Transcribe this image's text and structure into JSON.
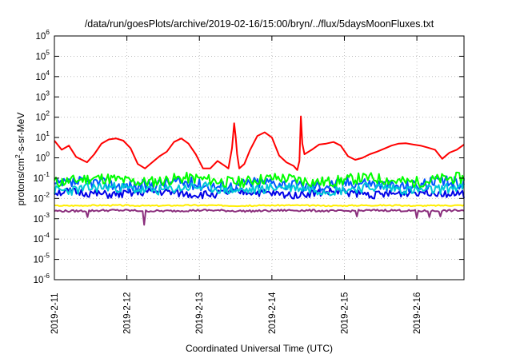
{
  "chart_data": {
    "type": "line",
    "title": "/data/run/goesPlots/archive/2019-02-16/15:00/bryn/../flux/5daysMoonFluxes.txt",
    "xlabel": "Coordinated Universal Time (UTC)",
    "ylabel": "protons/cm²-s-sr-MeV",
    "ylabel_parts": {
      "pre": "protons/cm",
      "sup": "2",
      "post": "-s-sr-MeV"
    },
    "yscale": "log",
    "ylim": [
      1e-06,
      1000000.0
    ],
    "xlim": [
      0,
      5.65
    ],
    "grid": true,
    "x_ticks": [
      {
        "label": "2019-2-11",
        "x": 0
      },
      {
        "label": "2019-2-12",
        "x": 1
      },
      {
        "label": "2019-2-13",
        "x": 2
      },
      {
        "label": "2019-2-14",
        "x": 3
      },
      {
        "label": "2019-2-15",
        "x": 4
      },
      {
        "label": "2019-2-16",
        "x": 5
      }
    ],
    "y_ticks": [
      {
        "base": "10",
        "exp": "6"
      },
      {
        "base": "10",
        "exp": "5"
      },
      {
        "base": "10",
        "exp": "4"
      },
      {
        "base": "10",
        "exp": "3"
      },
      {
        "base": "10",
        "exp": "2"
      },
      {
        "base": "10",
        "exp": "1"
      },
      {
        "base": "10",
        "exp": "0"
      },
      {
        "base": "10",
        "exp": "-1"
      },
      {
        "base": "10",
        "exp": "-2"
      },
      {
        "base": "10",
        "exp": "-3"
      },
      {
        "base": "10",
        "exp": "-4"
      },
      {
        "base": "10",
        "exp": "-5"
      },
      {
        "base": "10",
        "exp": "-6"
      }
    ],
    "series": [
      {
        "color": "#ff0000",
        "x": [
          0,
          0.1,
          0.2,
          0.3,
          0.45,
          0.55,
          0.65,
          0.75,
          0.85,
          0.95,
          1.05,
          1.15,
          1.25,
          1.35,
          1.45,
          1.55,
          1.65,
          1.75,
          1.85,
          1.95,
          2.05,
          2.15,
          2.25,
          2.35,
          2.4,
          2.45,
          2.48,
          2.5,
          2.52,
          2.55,
          2.62,
          2.7,
          2.8,
          2.9,
          3.0,
          3.1,
          3.2,
          3.3,
          3.35,
          3.38,
          3.4,
          3.42,
          3.45,
          3.55,
          3.65,
          3.75,
          3.85,
          3.95,
          4.05,
          4.15,
          4.25,
          4.35,
          4.45,
          4.55,
          4.65,
          4.75,
          4.85,
          4.95,
          5.05,
          5.15,
          5.25,
          5.35,
          5.45,
          5.55,
          5.65
        ],
        "values": [
          7,
          2.5,
          4,
          1.1,
          0.6,
          1.5,
          5,
          8,
          9,
          7,
          3,
          0.5,
          0.3,
          0.6,
          1.2,
          2,
          6,
          9,
          5,
          1.5,
          0.3,
          0.3,
          0.7,
          0.4,
          0.3,
          3,
          50,
          12,
          1.5,
          0.3,
          0.5,
          2.5,
          12,
          18,
          10,
          1.3,
          0.6,
          0.4,
          0.25,
          0.7,
          110,
          5,
          1.5,
          2.5,
          4.5,
          5,
          6,
          4,
          1.2,
          0.8,
          1.0,
          1.5,
          2,
          2.8,
          4,
          5,
          5.2,
          4.5,
          4,
          3.2,
          2.5,
          0.9,
          1.8,
          2.5,
          4.5
        ]
      },
      {
        "color": "#00ff00",
        "base": 0.08,
        "amp": 0.28,
        "seed": 11
      },
      {
        "color": "#00c8d8",
        "base": 0.03,
        "amp": 0.25,
        "seed": 23
      },
      {
        "color": "#0055ff",
        "base": 0.05,
        "amp": 0.3,
        "seed": 37
      },
      {
        "color": "#0000e8",
        "base": 0.018,
        "amp": 0.2,
        "seed": 51
      },
      {
        "color": "#ffee00",
        "base": 0.0045,
        "amp": 0.03,
        "seed": 67
      },
      {
        "color": "#8b2f7d",
        "base": 0.0025,
        "amp": 0.05,
        "seed": 79,
        "dips": [
          [
            0.45,
            0.0012
          ],
          [
            1.23,
            0.0005
          ],
          [
            4.18,
            0.0013
          ],
          [
            5.0,
            0.0011
          ],
          [
            5.18,
            0.0012
          ],
          [
            5.32,
            0.0013
          ]
        ]
      }
    ]
  }
}
